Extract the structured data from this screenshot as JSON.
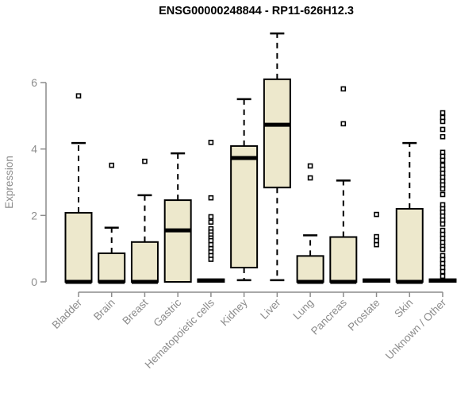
{
  "title": "ENSG00000248844 - RP11-626H12.3",
  "chart_data": {
    "type": "boxplot",
    "title": "ENSG00000248844 - RP11-626H12.3",
    "xlabel": "",
    "ylabel": "Expression",
    "ylim": [
      0,
      6
    ],
    "yticks": [
      0,
      2,
      4,
      6
    ],
    "grid": false,
    "categories": [
      "Bladder",
      "Brain",
      "Breast",
      "Gastric",
      "Hematopoietic cells",
      "Kidney",
      "Liver",
      "Lung",
      "Pancreas",
      "Prostate",
      "Skin",
      "Unknown / Other"
    ],
    "boxes": [
      {
        "category": "Bladder",
        "q1": 0,
        "median": 0,
        "q3": 2.08,
        "whisker_low": null,
        "whisker_high": 4.18,
        "outliers": [
          5.6
        ]
      },
      {
        "category": "Brain",
        "q1": 0,
        "median": 0,
        "q3": 0.86,
        "whisker_low": null,
        "whisker_high": 1.63,
        "outliers": [
          3.51
        ]
      },
      {
        "category": "Breast",
        "q1": 0,
        "median": 0,
        "q3": 1.2,
        "whisker_low": null,
        "whisker_high": 2.61,
        "outliers": [
          3.63
        ]
      },
      {
        "category": "Gastric",
        "q1": 0,
        "median": 1.55,
        "q3": 2.46,
        "whisker_low": null,
        "whisker_high": 3.87,
        "outliers": []
      },
      {
        "category": "Hematopoietic cells",
        "q1": 0,
        "median": 0.04,
        "q3": 0.08,
        "whisker_low": null,
        "whisker_high": null,
        "outliers": [
          4.2,
          2.53,
          1.96,
          1.8,
          1.6,
          1.5,
          1.41,
          1.32,
          1.24,
          1.12,
          1.0,
          0.9,
          0.79,
          0.68
        ]
      },
      {
        "category": "Kidney",
        "q1": 0.43,
        "median": 3.73,
        "q3": 4.09,
        "whisker_low": 0.05,
        "whisker_high": 5.5,
        "outliers": []
      },
      {
        "category": "Liver",
        "q1": 2.84,
        "median": 4.73,
        "q3": 6.1,
        "whisker_low": 0.05,
        "whisker_high": 7.48,
        "outliers": []
      },
      {
        "category": "Lung",
        "q1": 0,
        "median": 0,
        "q3": 0.78,
        "whisker_low": null,
        "whisker_high": 1.4,
        "outliers": [
          3.49,
          3.13
        ]
      },
      {
        "category": "Pancreas",
        "q1": 0,
        "median": 0,
        "q3": 1.35,
        "whisker_low": null,
        "whisker_high": 3.05,
        "outliers": [
          5.81,
          4.76
        ]
      },
      {
        "category": "Prostate",
        "q1": 0,
        "median": 0.04,
        "q3": 0.08,
        "whisker_low": null,
        "whisker_high": null,
        "outliers": [
          2.03,
          1.36,
          1.24,
          1.12
        ]
      },
      {
        "category": "Skin",
        "q1": 0,
        "median": 0,
        "q3": 2.2,
        "whisker_low": null,
        "whisker_high": 4.18,
        "outliers": []
      },
      {
        "category": "Unknown / Other",
        "q1": 0,
        "median": 0.04,
        "q3": 0.08,
        "whisker_low": null,
        "whisker_high": null,
        "outliers": [
          5.09,
          4.95,
          4.83,
          4.59,
          4.37,
          3.9,
          3.78,
          3.66,
          3.51,
          3.39,
          3.27,
          3.15,
          3.03,
          2.92,
          2.8,
          2.63,
          2.32,
          2.2,
          2.1,
          1.98,
          1.86,
          1.74,
          1.55,
          1.43,
          1.31,
          1.19,
          1.07,
          0.98,
          0.79,
          0.67,
          0.55,
          0.43,
          0.31,
          0.17
        ]
      }
    ]
  },
  "style": {
    "background": "#FFFFFF",
    "box_fill": "#EDE8CC",
    "box_stroke": "#000000",
    "median_color": "#000000",
    "whisker_color": "#000000",
    "outlier_stroke": "#000000",
    "axis_color": "#8C8C8C",
    "tick_label_color": "#8C8C8C",
    "title_color": "#000000"
  }
}
